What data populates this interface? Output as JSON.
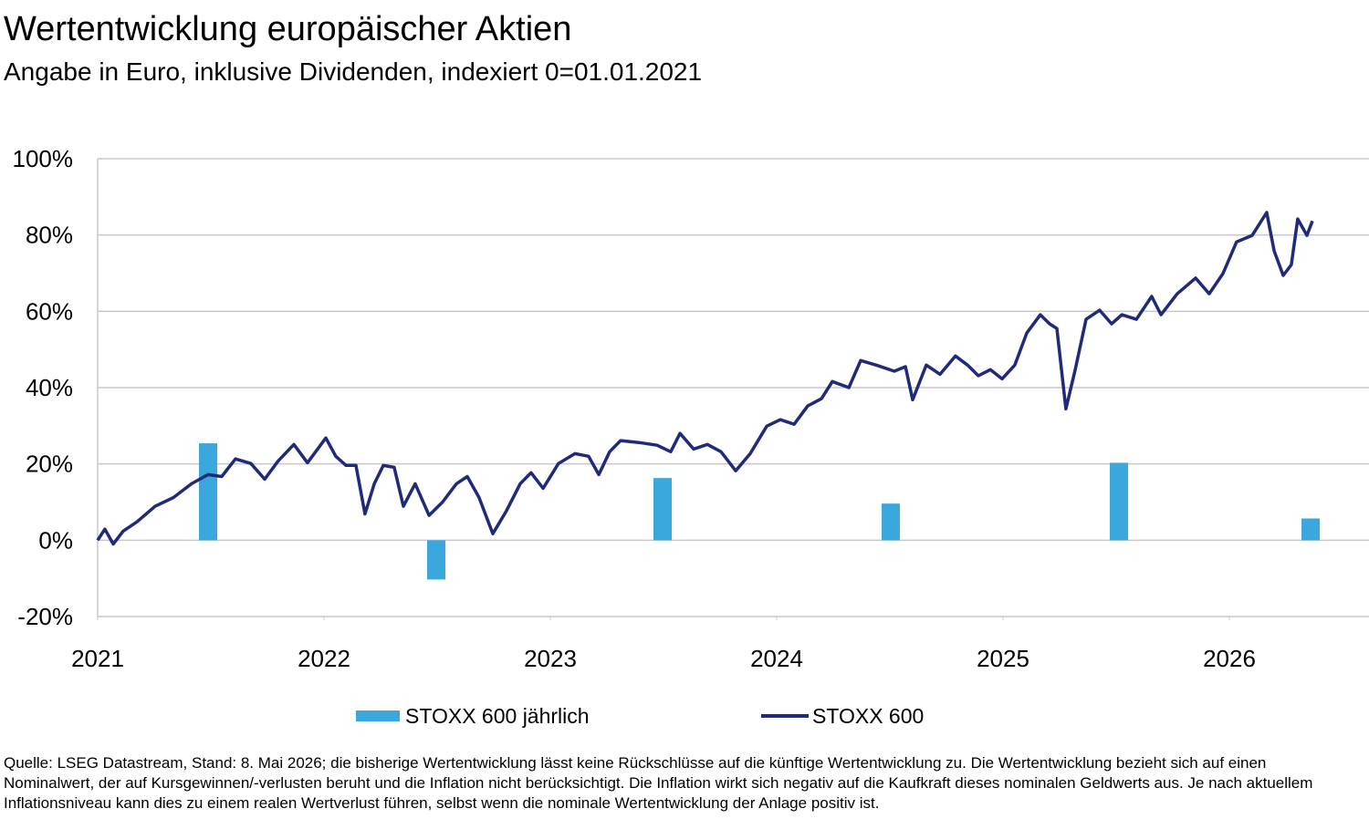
{
  "chart_data": {
    "type": "combo",
    "title": "Wertentwicklung europäischer Aktien",
    "subtitle": "Angabe in Euro, inklusive Dividenden, indexiert 0=01.01.2021",
    "xlim": [
      2021,
      2026.617
    ],
    "xticks": [
      2021,
      2022,
      2023,
      2024,
      2025,
      2026
    ],
    "ylim": [
      -20,
      100
    ],
    "yticks": [
      {
        "value": -20,
        "label": "-20%"
      },
      {
        "value": 0,
        "label": "0%"
      },
      {
        "value": 20,
        "label": "20%"
      },
      {
        "value": 40,
        "label": "40%"
      },
      {
        "value": 60,
        "label": "60%"
      },
      {
        "value": 80,
        "label": "80%"
      },
      {
        "value": 100,
        "label": "100%"
      }
    ],
    "grid": true,
    "legend": "bottom",
    "series": [
      {
        "name": "STOXX 600 jährlich",
        "type": "bar",
        "color": "#3aa8dc",
        "x": [
          2021.488,
          2022.496,
          2023.496,
          2024.504,
          2025.512,
          2026.359
        ],
        "values": [
          25.4,
          -10.3,
          16.3,
          9.6,
          20.3,
          5.7
        ]
      },
      {
        "name": "STOXX 600",
        "type": "line",
        "color": "#1f2a7a",
        "x": [
          2021.0,
          2021.032,
          2021.069,
          2021.113,
          2021.173,
          2021.254,
          2021.335,
          2021.415,
          2021.488,
          2021.548,
          2021.609,
          2021.677,
          2021.738,
          2021.798,
          2021.867,
          2021.927,
          2022.008,
          2022.052,
          2022.097,
          2022.141,
          2022.181,
          2022.222,
          2022.262,
          2022.31,
          2022.351,
          2022.403,
          2022.464,
          2022.524,
          2022.585,
          2022.633,
          2022.685,
          2022.746,
          2022.806,
          2022.867,
          2022.915,
          2022.968,
          2023.036,
          2023.109,
          2023.169,
          2023.214,
          2023.262,
          2023.31,
          2023.391,
          2023.472,
          2023.532,
          2023.573,
          2023.633,
          2023.694,
          2023.754,
          2023.819,
          2023.883,
          2023.956,
          2024.016,
          2024.077,
          2024.137,
          2024.198,
          2024.246,
          2024.319,
          2024.371,
          2024.44,
          2024.52,
          2024.569,
          2024.601,
          2024.661,
          2024.722,
          2024.79,
          2024.843,
          2024.891,
          2024.944,
          2024.996,
          2025.052,
          2025.105,
          2025.165,
          2025.206,
          2025.238,
          2025.278,
          2025.319,
          2025.367,
          2025.427,
          2025.48,
          2025.525,
          2025.589,
          2025.657,
          2025.698,
          2025.77,
          2025.851,
          2025.911,
          2025.972,
          2026.032,
          2026.101,
          2026.165,
          2026.198,
          2026.238,
          2026.274,
          2026.302,
          2026.343,
          2026.367
        ],
        "values": [
          0,
          2.9,
          -1,
          2.4,
          4.8,
          8.9,
          11.2,
          14.8,
          17.2,
          16.7,
          21.3,
          20.1,
          16,
          20.8,
          25.1,
          20.3,
          26.8,
          22,
          19.6,
          19.6,
          6.9,
          14.8,
          19.6,
          19.1,
          8.9,
          14.8,
          6.5,
          10,
          14.8,
          16.7,
          11.2,
          1.7,
          7.7,
          14.8,
          17.7,
          13.6,
          20.1,
          22.7,
          22,
          17.2,
          23.2,
          26.1,
          25.6,
          24.9,
          23.2,
          28,
          23.9,
          25.1,
          23.2,
          18.2,
          22.7,
          29.9,
          31.6,
          30.4,
          35.2,
          37.1,
          41.6,
          40,
          47.1,
          45.9,
          44.3,
          45.5,
          36.8,
          45.9,
          43.5,
          48.3,
          45.9,
          43.1,
          44.7,
          42.3,
          45.9,
          54.3,
          59.1,
          56.7,
          55.5,
          34.4,
          44.7,
          57.9,
          60.3,
          56.7,
          59.1,
          57.9,
          63.9,
          59.1,
          64.6,
          68.7,
          64.6,
          69.9,
          78.2,
          79.9,
          85.9,
          75.8,
          69.4,
          72.2,
          84.2,
          79.9,
          83.7
        ]
      }
    ],
    "note": "Quelle: LSEG Datastream, Stand: 8. Mai 2026; die bisherige Wertentwicklung lässt keine Rückschlüsse auf die künftige Wertentwicklung zu. Die Wertentwicklung bezieht sich auf einen Nominalwert, der auf Kursgewinnen/-verlusten beruht und die Inflation nicht berücksichtigt. Die Inflation wirkt sich negativ auf die Kaufkraft dieses nominalen Geldwerts aus. Je nach aktuellem Inflationsniveau kann dies zu einem realen Wertverlust führen, selbst wenn die nominale Wertentwicklung der Anlage positiv ist."
  }
}
